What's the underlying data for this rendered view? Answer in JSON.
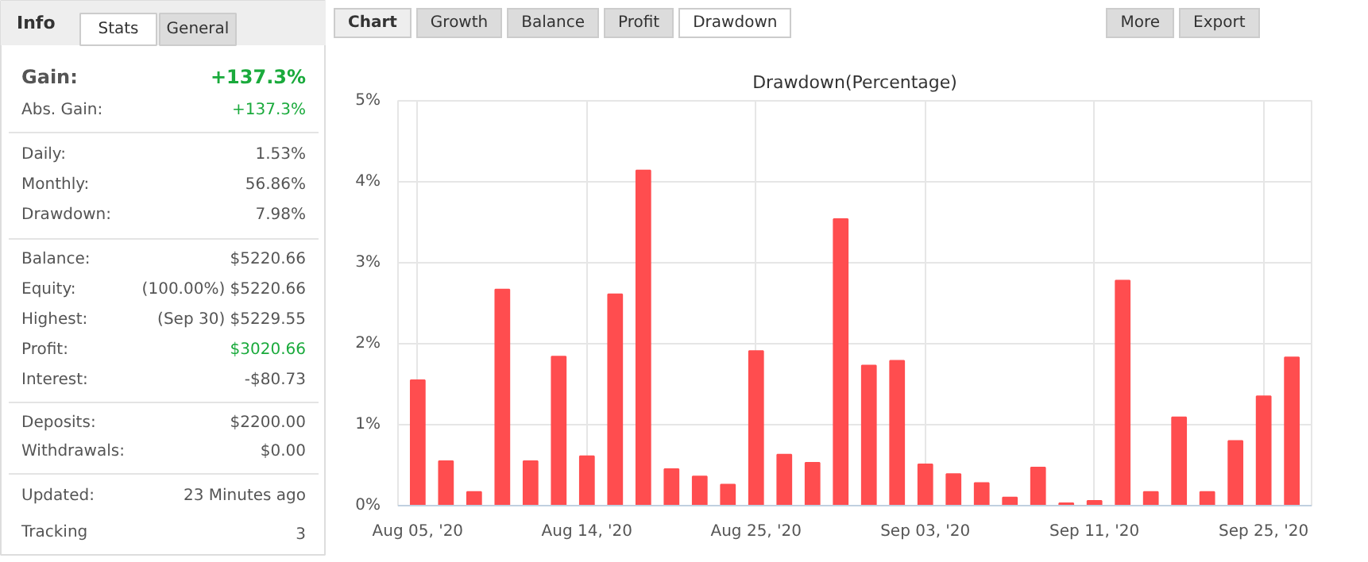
{
  "chart_data": [
    {
      "type": "other",
      "title": "Info",
      "annotations": [
        "Stats",
        "General",
        "Gain:",
        "+137.3%",
        "Abs. Gain:",
        "+137.3%",
        "Daily:",
        "1.53%",
        "Monthly:",
        "56.86%",
        "Drawdown:",
        "7.98%",
        "Balance:",
        "$5220.66",
        "Equity:",
        "(100.00%) $5220.66",
        "Highest:",
        "(Sep 30) $5229.55",
        "Profit:",
        "$3020.66",
        "Interest:",
        "-$80.73",
        "Deposits:",
        "$2200.00",
        "Withdrawals:",
        "$0.00",
        "Updated:",
        "23 Minutes ago",
        "Tracking",
        "3"
      ]
    },
    {
      "type": "bar",
      "title": "Drawdown(Percentage)",
      "annotations": [
        "Chart",
        "Growth",
        "Balance",
        "Profit",
        "Drawdown",
        "More",
        "Export"
      ],
      "categories": [
        "Aug 05, '20",
        null,
        null,
        null,
        null,
        null,
        "Aug 14, '20",
        null,
        null,
        null,
        null,
        null,
        "Aug 25, '20",
        null,
        null,
        null,
        null,
        null,
        "Sep 03, '20",
        null,
        null,
        null,
        null,
        null,
        "Sep 11, '20",
        null,
        null,
        null,
        null,
        null,
        "Sep 25, '20",
        null
      ],
      "values": [
        1.55,
        0.55,
        0.17,
        2.67,
        0.55,
        1.84,
        0.61,
        2.61,
        4.14,
        0.45,
        0.36,
        0.26,
        1.91,
        0.63,
        0.53,
        3.54,
        1.73,
        1.79,
        0.51,
        0.39,
        0.28,
        0.1,
        0.47,
        0.03,
        0.06,
        2.78,
        0.17,
        1.09,
        0.17,
        0.8,
        1.35,
        1.83
      ],
      "color": "#ff4d4f",
      "ylim": [
        0,
        5
      ],
      "yticks": [
        {
          "value": 0,
          "label": "0%"
        },
        {
          "value": 1,
          "label": "1%"
        },
        {
          "value": 2,
          "label": "2%"
        },
        {
          "value": 3,
          "label": "3%"
        },
        {
          "value": 4,
          "label": "4%"
        },
        {
          "value": 5,
          "label": "5%"
        }
      ],
      "grid": true
    }
  ]
}
